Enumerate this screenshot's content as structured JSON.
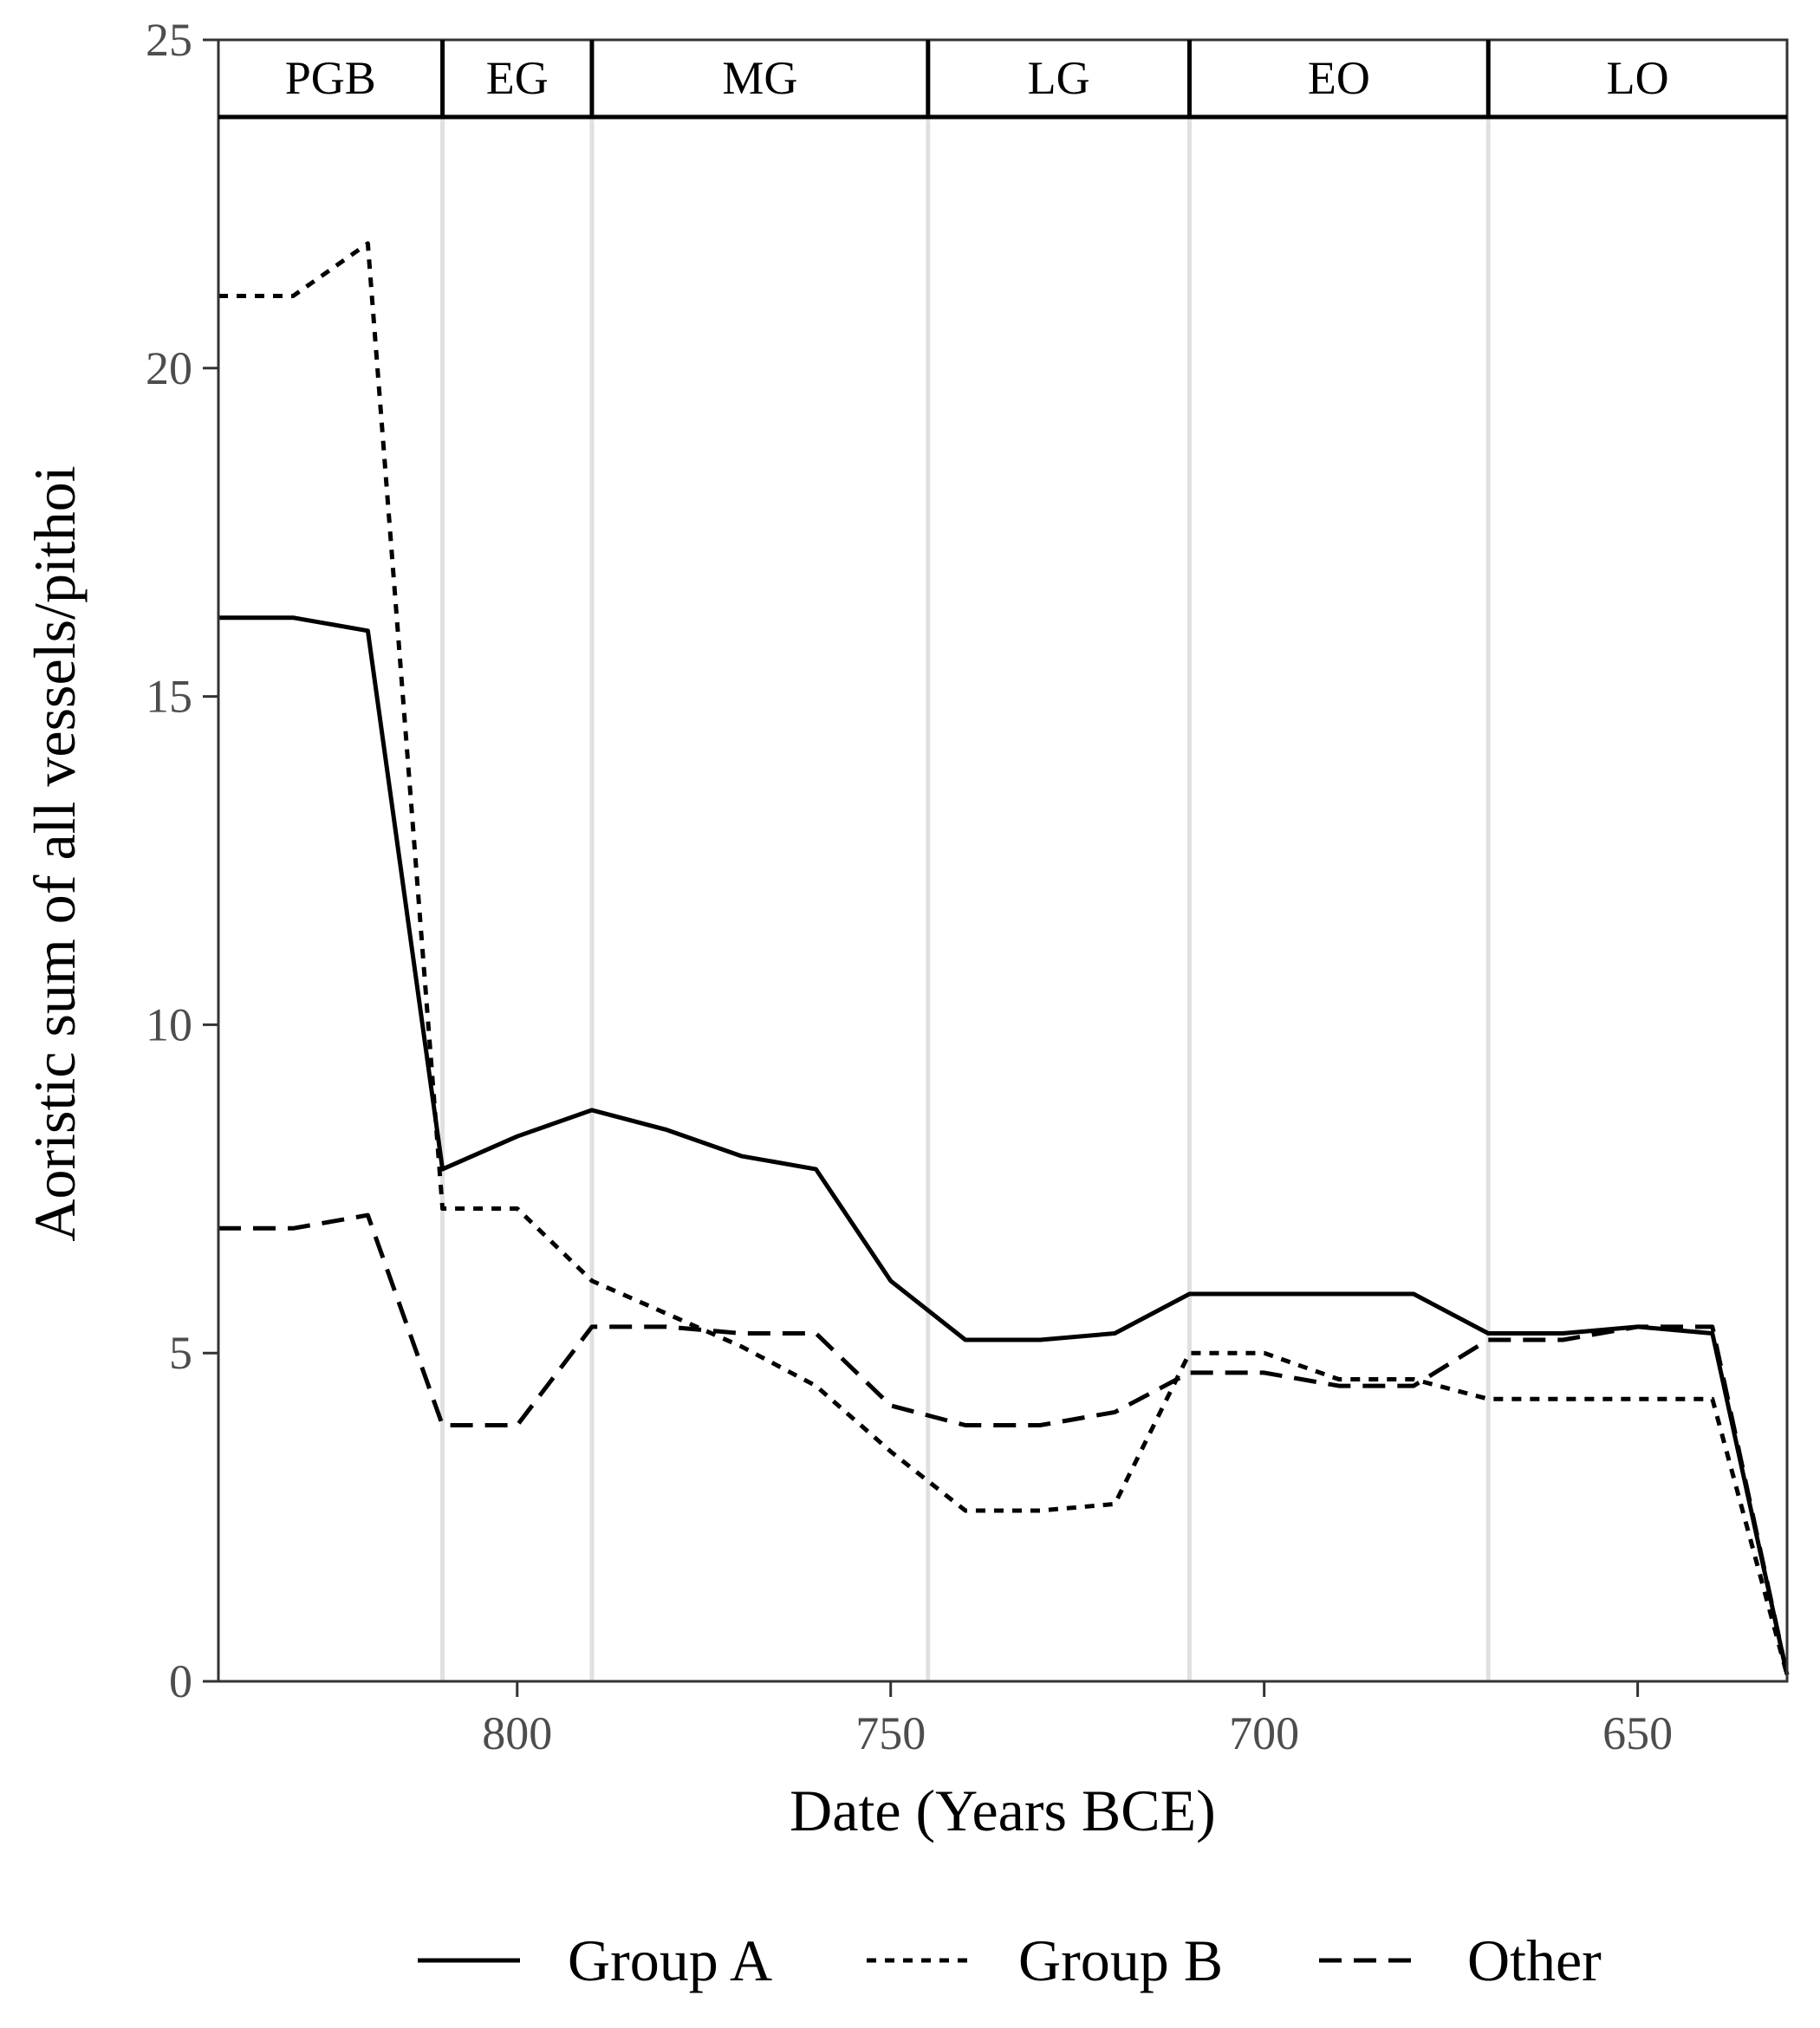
{
  "chart_data": {
    "type": "line",
    "xlabel": "Date (Years BCE)",
    "ylabel": "Aoristic sum of all vessels/pithoi",
    "xlim": [
      840,
      630
    ],
    "ylim": [
      0,
      25
    ],
    "x_reversed": true,
    "x_ticks": [
      800,
      750,
      700,
      650
    ],
    "y_ticks": [
      0,
      5,
      10,
      15,
      20,
      25
    ],
    "grid": false,
    "legend": "bottom",
    "periods": [
      {
        "label": "PGB",
        "start": 840,
        "end": 810
      },
      {
        "label": "EG",
        "start": 810,
        "end": 790
      },
      {
        "label": "MG",
        "start": 790,
        "end": 745
      },
      {
        "label": "LG",
        "start": 745,
        "end": 710
      },
      {
        "label": "EO",
        "start": 710,
        "end": 670
      },
      {
        "label": "LO",
        "start": 670,
        "end": 630
      }
    ],
    "period_boundaries": [
      810,
      790,
      745,
      710,
      670
    ],
    "series": [
      {
        "name": "Group A",
        "dash": "solid",
        "x": [
          840,
          830,
          820,
          810,
          800,
          790,
          780,
          770,
          760,
          750,
          740,
          730,
          720,
          710,
          700,
          690,
          680,
          670,
          660,
          650,
          640,
          630
        ],
        "y": [
          16.2,
          16.2,
          16.0,
          7.8,
          8.3,
          8.7,
          8.4,
          8.0,
          7.8,
          6.1,
          5.2,
          5.2,
          5.3,
          5.9,
          5.9,
          5.9,
          5.9,
          5.3,
          5.3,
          5.4,
          5.3,
          0.1
        ]
      },
      {
        "name": "Group B",
        "dash": "dotted",
        "x": [
          840,
          830,
          820,
          810,
          800,
          790,
          780,
          770,
          760,
          750,
          740,
          730,
          720,
          710,
          700,
          690,
          680,
          670,
          660,
          650,
          640,
          630
        ],
        "y": [
          21.1,
          21.1,
          21.9,
          7.2,
          7.2,
          6.1,
          5.6,
          5.1,
          4.5,
          3.5,
          2.6,
          2.6,
          2.7,
          5.0,
          5.0,
          4.6,
          4.6,
          4.3,
          4.3,
          4.3,
          4.3,
          0.1
        ]
      },
      {
        "name": "Other",
        "dash": "dashed",
        "x": [
          840,
          830,
          820,
          810,
          800,
          790,
          780,
          770,
          760,
          750,
          740,
          730,
          720,
          710,
          700,
          690,
          680,
          670,
          660,
          650,
          640,
          630
        ],
        "y": [
          6.9,
          6.9,
          7.1,
          3.9,
          3.9,
          5.4,
          5.4,
          5.3,
          5.3,
          4.2,
          3.9,
          3.9,
          4.1,
          4.7,
          4.7,
          4.5,
          4.5,
          5.2,
          5.2,
          5.4,
          5.4,
          0.1
        ]
      }
    ]
  }
}
